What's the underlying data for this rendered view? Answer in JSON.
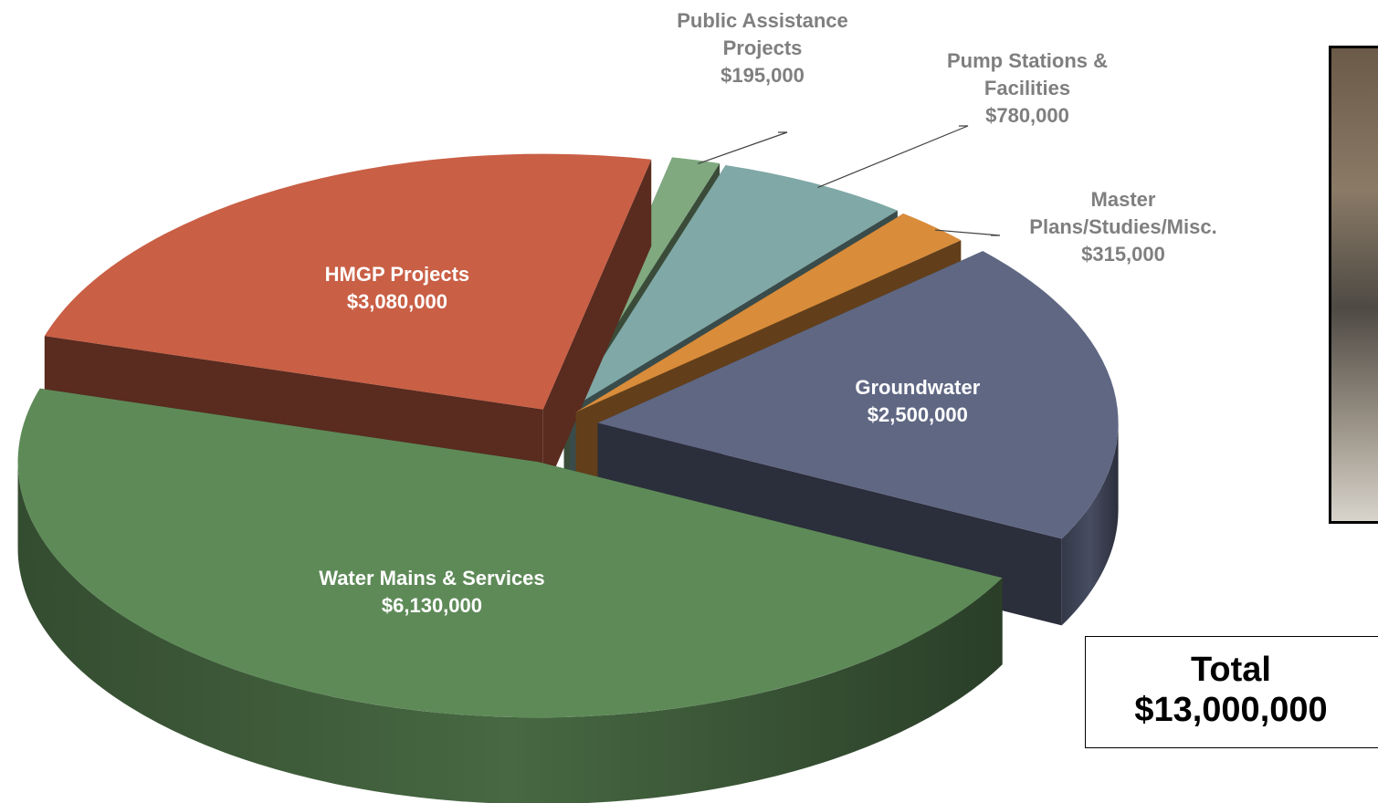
{
  "chart_data": {
    "type": "pie",
    "categories": [
      "Public Assistance Projects",
      "Pump Stations & Facilities",
      "Master Plans/Studies/Misc.",
      "Groundwater",
      "Water Mains & Services",
      "HMGP Projects"
    ],
    "values": [
      195000,
      780000,
      315000,
      2500000,
      6130000,
      3080000
    ],
    "value_labels": [
      "$195,000",
      "$780,000",
      "$315,000",
      "$2,500,000",
      "$6,130,000",
      "$3,080,000"
    ],
    "colors": [
      "#80a97f",
      "#7fa8a6",
      "#d98c3a",
      "#5f6783",
      "#5e8a58",
      "#c95f45"
    ]
  },
  "total": {
    "label": "Total",
    "value": "$13,000,000"
  }
}
